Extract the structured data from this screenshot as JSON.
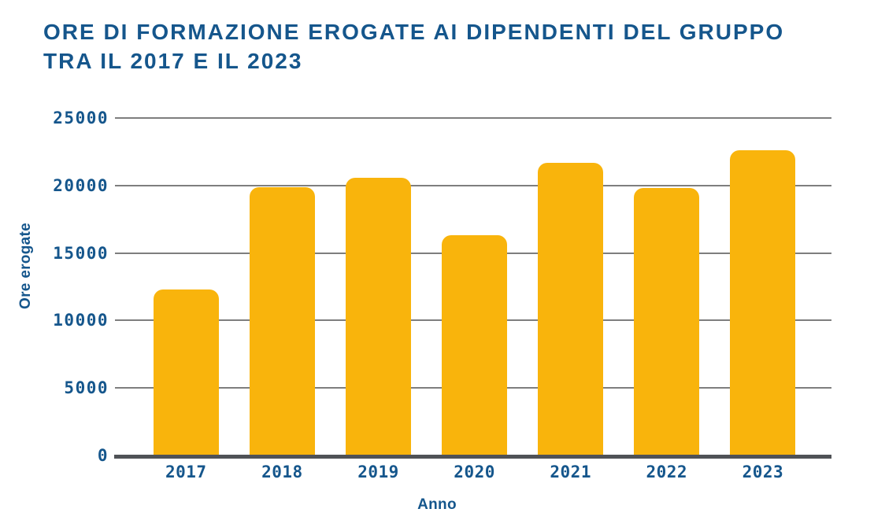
{
  "title_lines": [
    "ORE DI FORMAZIONE EROGATE AI DIPENDENTI DEL GRUPPO",
    "TRA IL 2017 E IL 2023"
  ],
  "colors": {
    "bar": "#F9B40C",
    "text_blue": "#15568C",
    "gridline": "#7E7E7E",
    "axis_line": "#4F5256",
    "background": "#FFFFFF"
  },
  "chart_data": {
    "type": "bar",
    "categories": [
      "2017",
      "2018",
      "2019",
      "2020",
      "2021",
      "2022",
      "2023"
    ],
    "values": [
      12300,
      19900,
      20600,
      16300,
      21700,
      19800,
      22600
    ],
    "title": "ORE DI FORMAZIONE EROGATE AI DIPENDENTI DEL GRUPPO TRA IL 2017 E IL 2023",
    "xlabel": "Anno",
    "ylabel": "Ore erogate",
    "ylim": [
      0,
      25000
    ],
    "yticks": [
      0,
      5000,
      10000,
      15000,
      20000,
      25000
    ],
    "grid": true,
    "legend": false,
    "bar_corner_radius": "rounded-top"
  }
}
